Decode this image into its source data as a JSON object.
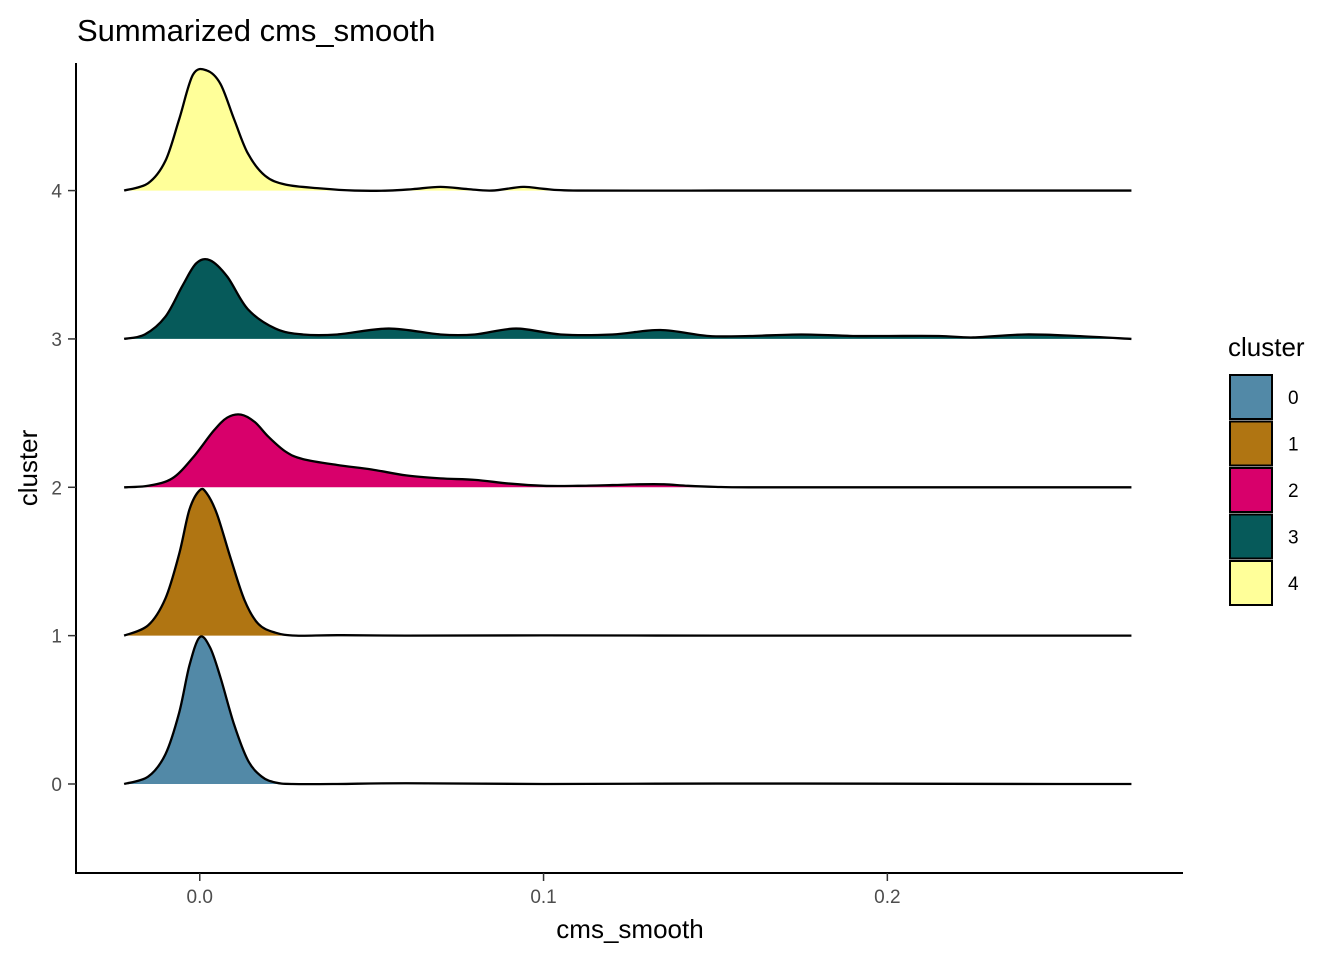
{
  "chart_data": {
    "type": "area",
    "subtype": "ridgeline",
    "title": "Summarized cms_smooth",
    "xlabel": "cms_smooth",
    "ylabel": "cluster",
    "xlim": [
      -0.036,
      0.286
    ],
    "ylim": [
      -0.6,
      4.86
    ],
    "x_ticks": [
      0.0,
      0.1,
      0.2
    ],
    "x_tick_labels": [
      "0.0",
      "0.1",
      "0.2"
    ],
    "y_ticks": [
      0,
      1,
      2,
      3,
      4
    ],
    "y_tick_labels": [
      "0",
      "1",
      "2",
      "3",
      "4"
    ],
    "grid": false,
    "legend": {
      "title": "cluster",
      "position": "right",
      "entries": [
        {
          "label": "0",
          "color": "#5289A7"
        },
        {
          "label": "1",
          "color": "#B07512"
        },
        {
          "label": "2",
          "color": "#D8006B"
        },
        {
          "label": "3",
          "color": "#065A5A"
        },
        {
          "label": "4",
          "color": "#FFFF99"
        }
      ]
    },
    "series": [
      {
        "name": "0",
        "baseline": 0,
        "color": "#5289A7",
        "x": [
          -0.022,
          -0.015,
          -0.01,
          -0.006,
          -0.003,
          0.0,
          0.003,
          0.006,
          0.01,
          0.014,
          0.018,
          0.022,
          0.027,
          0.04,
          0.06,
          0.1,
          0.15,
          0.2,
          0.25,
          0.271
        ],
        "y": [
          0.0,
          0.05,
          0.2,
          0.48,
          0.8,
          0.99,
          0.92,
          0.72,
          0.4,
          0.16,
          0.05,
          0.01,
          0.0,
          0.0,
          0.005,
          0.0,
          0.003,
          0.002,
          0.0,
          0.0
        ]
      },
      {
        "name": "1",
        "baseline": 1,
        "color": "#B07512",
        "x": [
          -0.022,
          -0.015,
          -0.01,
          -0.006,
          -0.003,
          0.0,
          0.002,
          0.005,
          0.009,
          0.013,
          0.017,
          0.022,
          0.028,
          0.04,
          0.06,
          0.1,
          0.15,
          0.2,
          0.25,
          0.271
        ],
        "y": [
          0.0,
          0.07,
          0.25,
          0.55,
          0.85,
          0.98,
          0.96,
          0.82,
          0.52,
          0.24,
          0.08,
          0.02,
          0.0,
          0.003,
          0.0,
          0.002,
          0.0,
          0.0,
          0.0,
          0.0
        ]
      },
      {
        "name": "2",
        "baseline": 2,
        "color": "#D8006B",
        "x": [
          -0.022,
          -0.015,
          -0.008,
          -0.002,
          0.004,
          0.008,
          0.012,
          0.016,
          0.02,
          0.025,
          0.03,
          0.04,
          0.05,
          0.06,
          0.07,
          0.08,
          0.09,
          0.1,
          0.11,
          0.12,
          0.128,
          0.135,
          0.142,
          0.15,
          0.16,
          0.2,
          0.25,
          0.271
        ],
        "y": [
          0.0,
          0.01,
          0.06,
          0.2,
          0.38,
          0.47,
          0.49,
          0.44,
          0.34,
          0.24,
          0.19,
          0.15,
          0.12,
          0.08,
          0.06,
          0.05,
          0.025,
          0.01,
          0.01,
          0.015,
          0.02,
          0.02,
          0.01,
          0.003,
          0.0,
          0.0,
          0.0,
          0.0
        ]
      },
      {
        "name": "3",
        "baseline": 3,
        "color": "#065A5A",
        "x": [
          -0.022,
          -0.016,
          -0.01,
          -0.005,
          -0.001,
          0.003,
          0.008,
          0.014,
          0.022,
          0.03,
          0.04,
          0.055,
          0.07,
          0.08,
          0.092,
          0.105,
          0.12,
          0.134,
          0.148,
          0.16,
          0.175,
          0.19,
          0.2,
          0.215,
          0.225,
          0.24,
          0.255,
          0.271
        ],
        "y": [
          0.0,
          0.03,
          0.15,
          0.36,
          0.51,
          0.53,
          0.42,
          0.2,
          0.07,
          0.03,
          0.03,
          0.07,
          0.03,
          0.03,
          0.07,
          0.03,
          0.03,
          0.06,
          0.02,
          0.02,
          0.03,
          0.02,
          0.02,
          0.02,
          0.01,
          0.03,
          0.02,
          0.0
        ]
      },
      {
        "name": "4",
        "baseline": 4,
        "color": "#FFFF99",
        "x": [
          -0.022,
          -0.015,
          -0.01,
          -0.006,
          -0.002,
          0.002,
          0.006,
          0.01,
          0.014,
          0.019,
          0.025,
          0.035,
          0.045,
          0.055,
          0.062,
          0.07,
          0.078,
          0.085,
          0.094,
          0.1,
          0.11,
          0.15,
          0.2,
          0.25,
          0.271
        ],
        "y": [
          0.0,
          0.05,
          0.2,
          0.48,
          0.78,
          0.81,
          0.72,
          0.48,
          0.25,
          0.1,
          0.04,
          0.015,
          0.0,
          0.0,
          0.01,
          0.025,
          0.01,
          0.0,
          0.025,
          0.012,
          0.0,
          0.0,
          0.0,
          0.0,
          0.0
        ]
      }
    ]
  }
}
